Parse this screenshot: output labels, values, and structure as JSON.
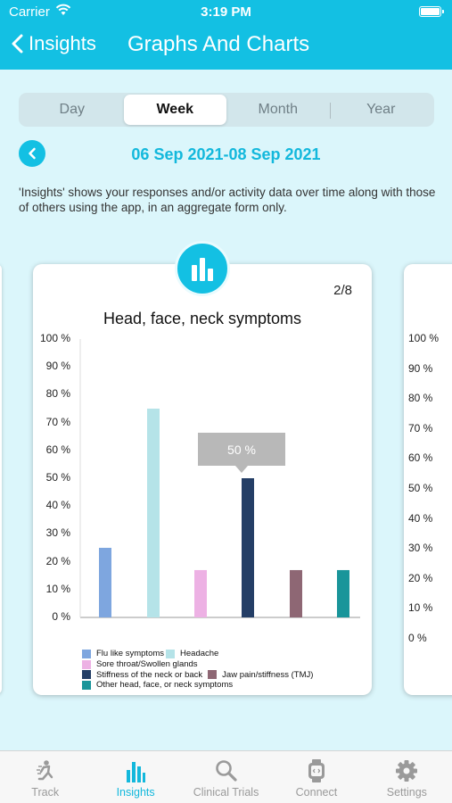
{
  "status": {
    "carrier": "Carrier",
    "time": "3:19 PM"
  },
  "nav": {
    "back_label": "Insights",
    "title": "Graphs And Charts"
  },
  "segments": [
    {
      "label": "Day",
      "selected": false
    },
    {
      "label": "Week",
      "selected": true
    },
    {
      "label": "Month",
      "selected": false
    },
    {
      "label": "Year",
      "selected": false
    }
  ],
  "date_range": "06 Sep 2021-08 Sep 2021",
  "description": "'Insights' shows your responses and/or activity data over time along with those of others using the app, in an aggregate form only.",
  "card": {
    "pager": "2/8"
  },
  "tooltip": "50 %",
  "chart_data": {
    "type": "bar",
    "title": "Head, face, neck symptoms",
    "ylim": [
      0,
      100
    ],
    "ytick_labels": [
      "0 %",
      "10 %",
      "20 %",
      "30 %",
      "40 %",
      "50 %",
      "60 %",
      "70 %",
      "80 %",
      "90 %",
      "100 %"
    ],
    "series": [
      {
        "name": "Flu like symptoms",
        "value": 25,
        "color": "#7ea6df"
      },
      {
        "name": "Headache",
        "value": 75,
        "color": "#b5e3e8"
      },
      {
        "name": "Sore throat/Swollen glands",
        "value": 17,
        "color": "#edb1e4"
      },
      {
        "name": "Stiffness of the neck or back",
        "value": 50,
        "color": "#243e66"
      },
      {
        "name": "Jaw pain/stiffness (TMJ)",
        "value": 17,
        "color": "#8e6774"
      },
      {
        "name": "Other head, face, or neck symptoms",
        "value": 17,
        "color": "#19959a"
      }
    ],
    "highlighted": "Stiffness of the neck or back"
  },
  "next_card": {
    "ytick_labels": [
      "0 %",
      "10 %",
      "20 %",
      "30 %",
      "40 %",
      "50 %",
      "60 %",
      "70 %",
      "80 %",
      "90 %",
      "100 %"
    ]
  },
  "tabbar": [
    {
      "label": "Track",
      "icon": "track-icon",
      "active": false
    },
    {
      "label": "Insights",
      "icon": "bar-chart-icon",
      "active": true
    },
    {
      "label": "Clinical Trials",
      "icon": "search-icon",
      "active": false
    },
    {
      "label": "Connect",
      "icon": "watch-icon",
      "active": false
    },
    {
      "label": "Settings",
      "icon": "gear-icon",
      "active": false
    }
  ],
  "colors": {
    "accent": "#13c0e3",
    "background": "#dbf6fb"
  }
}
